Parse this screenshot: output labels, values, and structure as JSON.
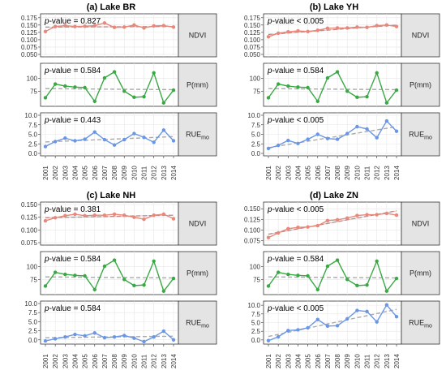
{
  "figure_title": "",
  "colors": {
    "ndvi_line": "#e8877a",
    "p_line": "#3aa845",
    "rue_line": "#6a96e6",
    "trend": "#aaaaaa",
    "fit_ndvi": "#d9534f",
    "panel_bg": "#ffffff",
    "grid": "#e6e6e6",
    "strip_bg": "#e4e4e4"
  },
  "chart_data": [
    {
      "type": "line",
      "title": "(a) Lake BR",
      "x": [
        2001,
        2002,
        2003,
        2004,
        2005,
        2006,
        2007,
        2008,
        2009,
        2010,
        2011,
        2012,
        2013,
        2014
      ],
      "facets": [
        {
          "strip": "NDVI",
          "strip_main": "NDVI",
          "strip_sub": "",
          "pvalue_text": "-value = 0.827",
          "pvalue_italic": "p",
          "ylim": [
            0.05,
            0.18
          ],
          "yticks": [
            "0.050",
            "0.075",
            "0.100",
            "0.125",
            "0.150",
            "0.175"
          ],
          "values": [
            0.128,
            0.145,
            0.148,
            0.145,
            0.146,
            0.148,
            0.157,
            0.142,
            0.143,
            0.15,
            0.14,
            0.147,
            0.148,
            0.143
          ],
          "trend": [
            0.143,
            0.145
          ],
          "color_key": "ndvi_line"
        },
        {
          "strip": "P(mm)",
          "strip_main": "P(mm)",
          "strip_sub": "",
          "pvalue_text": "-value = 0.584",
          "pvalue_italic": "p",
          "ylim": [
            50,
            125
          ],
          "yticks": [
            "75",
            "100"
          ],
          "values": [
            62,
            89,
            85,
            83,
            82,
            55,
            101,
            113,
            75,
            63,
            64,
            111,
            52,
            77
          ],
          "trend": [
            80,
            78
          ],
          "color_key": "p_line"
        },
        {
          "strip": "RUEmo",
          "strip_main": "RUE",
          "strip_sub": "mo",
          "pvalue_text": "-value = 0.443",
          "pvalue_italic": "p",
          "ylim": [
            0,
            10
          ],
          "yticks": [
            "0.0",
            "2.5",
            "5.0",
            "7.5",
            "10.0"
          ],
          "values": [
            1.8,
            3.1,
            4.0,
            3.3,
            3.7,
            5.6,
            3.6,
            2.2,
            3.6,
            5.2,
            4.2,
            2.9,
            6.1,
            3.3
          ],
          "trend": [
            3.0,
            4.4
          ],
          "color_key": "rue_line"
        }
      ]
    },
    {
      "type": "line",
      "title": "(b) Lake YH",
      "x": [
        2001,
        2002,
        2003,
        2004,
        2005,
        2006,
        2007,
        2008,
        2009,
        2010,
        2011,
        2012,
        2013,
        2014
      ],
      "facets": [
        {
          "strip": "NDVI",
          "strip_main": "NDVI",
          "strip_sub": "",
          "pvalue_text": "-value < 0.005",
          "pvalue_italic": "p",
          "ylim": [
            0.05,
            0.18
          ],
          "yticks": [
            "0.050",
            "0.075",
            "0.100",
            "0.125",
            "0.150",
            "0.175"
          ],
          "values": [
            0.11,
            0.122,
            0.127,
            0.13,
            0.128,
            0.132,
            0.139,
            0.14,
            0.14,
            0.143,
            0.142,
            0.148,
            0.15,
            0.145
          ],
          "trend": [
            0.118,
            0.15
          ],
          "color_key": "ndvi_line"
        },
        {
          "strip": "P(mm)",
          "strip_main": "P(mm)",
          "strip_sub": "",
          "pvalue_text": "-value = 0.584",
          "pvalue_italic": "p",
          "ylim": [
            50,
            125
          ],
          "yticks": [
            "75",
            "100"
          ],
          "values": [
            62,
            89,
            85,
            83,
            82,
            55,
            101,
            113,
            75,
            63,
            64,
            111,
            52,
            77
          ],
          "trend": [
            80,
            78
          ],
          "color_key": "p_line"
        },
        {
          "strip": "RUEmo",
          "strip_main": "RUE",
          "strip_sub": "mo",
          "pvalue_text": "-value < 0.005",
          "pvalue_italic": "p",
          "ylim": [
            0,
            10
          ],
          "yticks": [
            "0.0",
            "2.5",
            "5.0",
            "7.5",
            "10.0"
          ],
          "values": [
            1.3,
            2.1,
            3.4,
            2.6,
            3.7,
            5.0,
            3.9,
            3.7,
            5.2,
            7.0,
            6.4,
            4.1,
            8.5,
            5.8
          ],
          "trend": [
            1.5,
            7.0
          ],
          "color_key": "rue_line"
        }
      ]
    },
    {
      "type": "line",
      "title": "(c) Lake NH",
      "x": [
        2001,
        2002,
        2003,
        2004,
        2005,
        2006,
        2007,
        2008,
        2009,
        2010,
        2011,
        2012,
        2013,
        2014
      ],
      "facets": [
        {
          "strip": "NDVI",
          "strip_main": "NDVI",
          "strip_sub": "",
          "pvalue_text": "-value = 0.381",
          "pvalue_italic": "p",
          "ylim": [
            0.075,
            0.15
          ],
          "yticks": [
            "0.075",
            "0.100",
            "0.125",
            "0.150"
          ],
          "values": [
            0.118,
            0.124,
            0.128,
            0.131,
            0.128,
            0.129,
            0.129,
            0.131,
            0.129,
            0.125,
            0.121,
            0.129,
            0.131,
            0.122
          ],
          "trend": [
            0.124,
            0.129
          ],
          "color_key": "ndvi_line"
        },
        {
          "strip": "P(mm)",
          "strip_main": "P(mm)",
          "strip_sub": "",
          "pvalue_text": "-value = 0.584",
          "pvalue_italic": "p",
          "ylim": [
            50,
            125
          ],
          "yticks": [
            "75",
            "100"
          ],
          "values": [
            62,
            89,
            85,
            83,
            82,
            55,
            101,
            113,
            75,
            63,
            64,
            111,
            52,
            77
          ],
          "trend": [
            80,
            78
          ],
          "color_key": "p_line"
        },
        {
          "strip": "RUEmo",
          "strip_main": "RUE",
          "strip_sub": "mo",
          "pvalue_text": "-value = 0.584",
          "pvalue_italic": "p",
          "ylim": [
            -0.5,
            10
          ],
          "yticks": [
            "0.0",
            "2.5",
            "5.0",
            "7.5",
            "10.0"
          ],
          "values": [
            -0.3,
            0.3,
            0.8,
            1.5,
            1.1,
            1.9,
            0.6,
            0.8,
            1.2,
            0.5,
            -0.5,
            0.8,
            2.4,
            0.0
          ],
          "trend": [
            0.6,
            1.0
          ],
          "color_key": "rue_line"
        }
      ]
    },
    {
      "type": "line",
      "title": "(d) Lake ZN",
      "x": [
        2001,
        2002,
        2003,
        2004,
        2005,
        2006,
        2007,
        2008,
        2009,
        2010,
        2011,
        2012,
        2013,
        2014
      ],
      "facets": [
        {
          "strip": "NDVI",
          "strip_main": "NDVI",
          "strip_sub": "",
          "pvalue_text": "-value < 0.005",
          "pvalue_italic": "p",
          "ylim": [
            0.07,
            0.16
          ],
          "yticks": [
            "0.075",
            "0.100",
            "0.125",
            "0.150"
          ],
          "values": [
            0.082,
            0.093,
            0.103,
            0.106,
            0.107,
            0.11,
            0.122,
            0.124,
            0.128,
            0.134,
            0.136,
            0.136,
            0.139,
            0.135
          ],
          "trend": [
            0.09,
            0.145
          ],
          "color_key": "ndvi_line"
        },
        {
          "strip": "P(mm)",
          "strip_main": "P(mm)",
          "strip_sub": "",
          "pvalue_text": "-value = 0.584",
          "pvalue_italic": "p",
          "ylim": [
            50,
            125
          ],
          "yticks": [
            "75",
            "100"
          ],
          "values": [
            62,
            89,
            85,
            83,
            82,
            55,
            101,
            113,
            75,
            63,
            64,
            111,
            52,
            77
          ],
          "trend": [
            80,
            78
          ],
          "color_key": "p_line"
        },
        {
          "strip": "RUEmo",
          "strip_main": "RUE",
          "strip_sub": "mo",
          "pvalue_text": "-value < 0.005",
          "pvalue_italic": "p",
          "ylim": [
            -0.5,
            10.5
          ],
          "yticks": [
            "0.0",
            "2.5",
            "5.0",
            "7.5",
            "10.0"
          ],
          "values": [
            -0.2,
            0.9,
            2.7,
            2.9,
            3.5,
            5.9,
            4.0,
            4.1,
            6.1,
            8.5,
            8.2,
            5.2,
            10.1,
            6.7
          ],
          "trend": [
            1.0,
            8.8
          ],
          "color_key": "rue_line"
        }
      ]
    }
  ]
}
